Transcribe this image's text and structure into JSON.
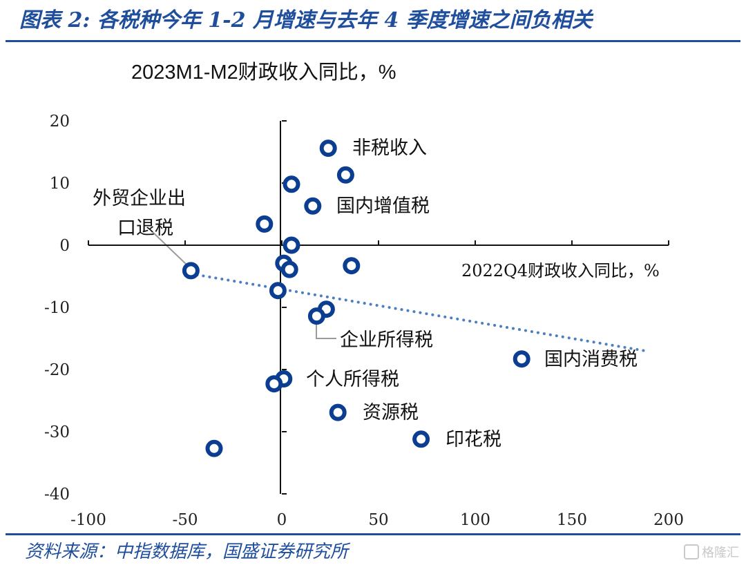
{
  "figure": {
    "title": "图表 2: 各税种今年 1-2 月增速与去年 4 季度增速之间负相关",
    "source": "资料来源：中指数据库，国盛证券研究所",
    "watermark": "格隆汇"
  },
  "colors": {
    "accent": "#1f4e9c",
    "marker": "#0b3d91",
    "trend": "#4a7fc1",
    "axis": "#111111",
    "leader": "#9a9a9a"
  },
  "chart_data": {
    "type": "scatter",
    "ylabel": "2023M1-M2财政收入同比，%",
    "xlabel": "2022Q4财政收入同比，%",
    "xlim": [
      -100,
      200
    ],
    "ylim": [
      -40,
      20
    ],
    "x_ticks": [
      "-100",
      "-50",
      "0",
      "50",
      "100",
      "150",
      "200"
    ],
    "y_ticks": [
      "20",
      "10",
      "0",
      "-10",
      "-20",
      "-30",
      "-40"
    ],
    "x_tick_values": [
      -100,
      -50,
      0,
      50,
      100,
      150,
      200
    ],
    "y_tick_values": [
      20,
      10,
      0,
      -10,
      -20,
      -30,
      -40
    ],
    "grid": false,
    "points": [
      {
        "x": 24,
        "y": 15.6,
        "label": "非税收入"
      },
      {
        "x": 33,
        "y": 11.3,
        "label": ""
      },
      {
        "x": 5,
        "y": 9.8,
        "label": ""
      },
      {
        "x": 16,
        "y": 6.3,
        "label": "国内增值税"
      },
      {
        "x": -9,
        "y": 3.4,
        "label": ""
      },
      {
        "x": 5,
        "y": 0.0,
        "label": ""
      },
      {
        "x": 36,
        "y": -3.3,
        "label": ""
      },
      {
        "x": 1,
        "y": -2.9,
        "label": ""
      },
      {
        "x": 4,
        "y": -3.9,
        "label": ""
      },
      {
        "x": -2,
        "y": -7.3,
        "label": ""
      },
      {
        "x": -47,
        "y": -4.1,
        "label": "外贸企业出口退税"
      },
      {
        "x": 23,
        "y": -10.3,
        "label": ""
      },
      {
        "x": 18,
        "y": -11.4,
        "label": "企业所得税"
      },
      {
        "x": 124,
        "y": -18.3,
        "label": "国内消费税"
      },
      {
        "x": 1,
        "y": -21.5,
        "label": "个人所得税"
      },
      {
        "x": -4,
        "y": -22.3,
        "label": ""
      },
      {
        "x": 29,
        "y": -26.9,
        "label": "资源税"
      },
      {
        "x": 72,
        "y": -31.2,
        "label": "印花税"
      },
      {
        "x": -35,
        "y": -32.7,
        "label": ""
      }
    ],
    "trendline": {
      "style": "dotted",
      "x": [
        -47,
        188
      ],
      "y": [
        -4.6,
        -17.0
      ]
    },
    "annotations": {
      "nontax": "非税收入",
      "vat": "国内增值税",
      "export_line1": "外贸企业出",
      "export_line2": "口退税",
      "cit": "企业所得税",
      "consumption": "国内消费税",
      "pit": "个人所得税",
      "resource": "资源税",
      "stamp": "印花税"
    }
  }
}
